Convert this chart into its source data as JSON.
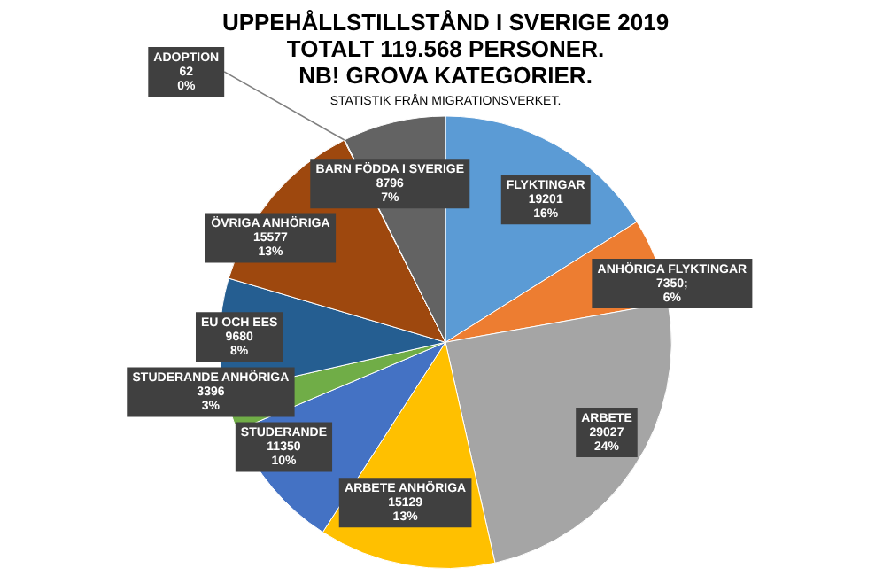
{
  "chart_data": {
    "type": "pie",
    "title": "UPPEHÅLLSTILLSTÅND I SVERIGE 2019\nTOTALT 119.568 PERSONER.\nNB! GROVA KATEGORIER.",
    "subtitle": "STATISTIK FRÅN MIGRATIONSVERKET.",
    "categories": [
      "FLYKTINGAR",
      "ANHÖRIGA FLYKTINGAR",
      "ARBETE",
      "ARBETE ANHÖRIGA",
      "STUDERANDE",
      "STUDERANDE ANHÖRIGA",
      "EU OCH EES",
      "ÖVRIGA ANHÖRIGA",
      "ADOPTION",
      "BARN FÖDDA I SVERIGE"
    ],
    "values": [
      19201,
      7350,
      29027,
      15129,
      11350,
      3396,
      9680,
      15577,
      62,
      8796
    ],
    "value_labels": [
      "19201\n16%",
      "7350;\n6%",
      "29027\n24%",
      "15129\n13%",
      "11350\n10%",
      "3396\n3%",
      "9680\n8%",
      "15577\n13%",
      "62\n0%",
      "8796\n7%"
    ],
    "colors": [
      "#5b9bd5",
      "#ed7d31",
      "#a5a5a5",
      "#ffc000",
      "#4472c4",
      "#70ad47",
      "#255e91",
      "#9e480e",
      "#636363",
      "#636363"
    ],
    "legend": false
  }
}
